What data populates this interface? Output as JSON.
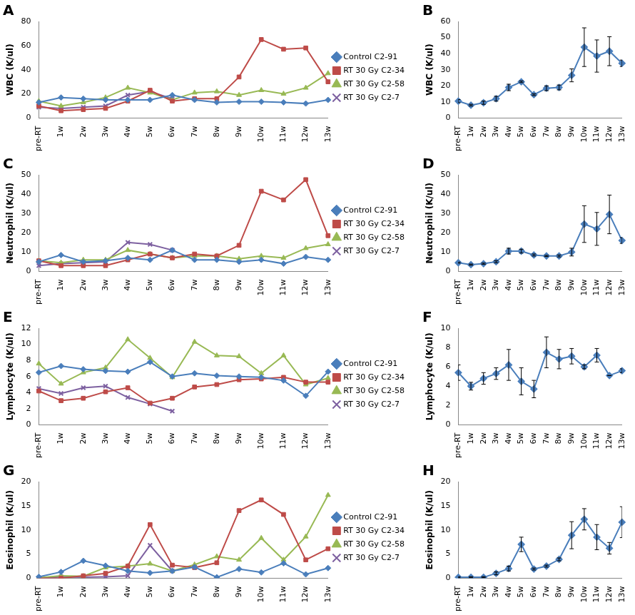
{
  "chart_data": [
    {
      "type": "line",
      "title": "A",
      "y_label": "WBC (K/ul)",
      "legend": "right",
      "grid": false,
      "categories": [
        "pre-RT",
        "1w",
        "2w",
        "3w",
        "4w",
        "5w",
        "6w",
        "7w",
        "8w",
        "9w",
        "10w",
        "11w",
        "12w",
        "13w"
      ],
      "ylim": [
        0,
        80
      ],
      "yticks": [
        0,
        20,
        40,
        60,
        80
      ],
      "series": [
        {
          "name": "Control C2-91",
          "color": "#4a7ebb",
          "marker": "diamond",
          "values": [
            13,
            17,
            16,
            15,
            15,
            15,
            19,
            15,
            13,
            13.5,
            13.5,
            13,
            12,
            15
          ]
        },
        {
          "name": "RT 30 Gy C2-34",
          "color": "#be4b48",
          "marker": "square",
          "values": [
            10,
            6,
            7,
            8,
            14,
            23,
            14,
            16,
            16,
            34,
            65,
            57,
            58,
            30
          ]
        },
        {
          "name": "RT 30 Gy C2-58",
          "color": "#98b954",
          "marker": "triangle",
          "values": [
            14,
            10,
            13,
            17,
            25,
            21,
            15,
            21,
            22,
            19,
            23,
            20,
            25,
            37
          ]
        },
        {
          "name": "RT 30 Gy C2-7",
          "color": "#7d60a0",
          "marker": "x",
          "values": [
            9,
            8,
            9,
            10,
            19,
            22,
            16,
            null,
            null,
            null,
            null,
            null,
            null,
            null
          ]
        }
      ]
    },
    {
      "type": "line",
      "title": "B",
      "y_label": "WBC (K/ul)",
      "grid": false,
      "categories": [
        "pre-RT",
        "1w",
        "2w",
        "3w",
        "4w",
        "5w",
        "6w",
        "7w",
        "8w",
        "9w",
        "10w",
        "11w",
        "12w",
        "13w"
      ],
      "ylim": [
        0,
        60
      ],
      "yticks": [
        0,
        10,
        20,
        30,
        40,
        50,
        60
      ],
      "color": "#4a7ebb",
      "marker": "diamond",
      "values": [
        10.5,
        8,
        9.5,
        12,
        19,
        22.5,
        14.5,
        18.5,
        19,
        26.5,
        44,
        38.5,
        41.5,
        34
      ],
      "errors": [
        1,
        0.5,
        1,
        1.5,
        2,
        0.5,
        0.5,
        1.5,
        1.5,
        4,
        12,
        10,
        9,
        2
      ]
    },
    {
      "type": "line",
      "title": "C",
      "y_label": "Neutrophil (K/ul)",
      "legend": "right",
      "grid": false,
      "categories": [
        "pre-RT",
        "1w",
        "2w",
        "3w",
        "4w",
        "5w",
        "6w",
        "7w",
        "8w",
        "9w",
        "10w",
        "11w",
        "12w",
        "13w"
      ],
      "ylim": [
        0,
        50
      ],
      "yticks": [
        0,
        10,
        20,
        30,
        40,
        50
      ],
      "series": [
        {
          "name": "Control C2-91",
          "color": "#4a7ebb",
          "marker": "diamond",
          "values": [
            5,
            8.5,
            5,
            5.5,
            7,
            6,
            11,
            6,
            6,
            5,
            6,
            4,
            7.5,
            6
          ]
        },
        {
          "name": "RT 30 Gy C2-34",
          "color": "#be4b48",
          "marker": "square",
          "values": [
            5.5,
            3,
            3,
            3,
            6,
            9,
            7,
            9,
            8,
            13.5,
            41.5,
            37,
            47.5,
            18.5
          ]
        },
        {
          "name": "RT 30 Gy C2-58",
          "color": "#98b954",
          "marker": "triangle",
          "values": [
            5.5,
            4.5,
            6,
            6,
            11,
            9,
            7,
            8,
            8,
            6.5,
            8,
            7,
            12,
            14
          ]
        },
        {
          "name": "RT 30 Gy C2-7",
          "color": "#7d60a0",
          "marker": "x",
          "values": [
            3,
            4,
            4.5,
            5,
            15,
            14,
            11,
            null,
            null,
            null,
            null,
            null,
            null,
            null
          ]
        }
      ]
    },
    {
      "type": "line",
      "title": "D",
      "y_label": "Neutrophil (K/ul)",
      "grid": false,
      "categories": [
        "pre-RT",
        "1w",
        "2w",
        "3w",
        "4w",
        "5w",
        "6w",
        "7w",
        "8w",
        "9w",
        "10w",
        "11w",
        "12w",
        "13w"
      ],
      "ylim": [
        0,
        50
      ],
      "yticks": [
        0,
        10,
        20,
        30,
        40,
        50
      ],
      "color": "#4a7ebb",
      "marker": "diamond",
      "values": [
        4.5,
        3.5,
        4,
        5,
        10.5,
        10.5,
        8.5,
        8,
        8,
        10,
        24.5,
        22,
        29.5,
        16
      ],
      "errors": [
        0.3,
        0.3,
        0.3,
        0.5,
        1.5,
        1,
        0.5,
        0.3,
        0.5,
        2,
        9.5,
        8.5,
        10,
        1.5
      ]
    },
    {
      "type": "line",
      "title": "E",
      "y_label": "Lymphocyte (K/ul)",
      "legend": "right",
      "grid": false,
      "categories": [
        "pre-RT",
        "1w",
        "2w",
        "3w",
        "4w",
        "5w",
        "6w",
        "7w",
        "8w",
        "9w",
        "10w",
        "11w",
        "12w",
        "13w"
      ],
      "ylim": [
        0,
        12
      ],
      "yticks": [
        0,
        2,
        4,
        6,
        8,
        10,
        12
      ],
      "series": [
        {
          "name": "Control C2-91",
          "color": "#4a7ebb",
          "marker": "diamond",
          "values": [
            6.5,
            7.3,
            6.9,
            6.7,
            6.6,
            7.8,
            6,
            6.4,
            6.1,
            6,
            5.9,
            5.5,
            3.6,
            6.6
          ]
        },
        {
          "name": "RT 30 Gy C2-34",
          "color": "#be4b48",
          "marker": "square",
          "values": [
            4.2,
            3,
            3.3,
            4.1,
            4.6,
            2.7,
            3.3,
            4.7,
            5,
            5.6,
            5.7,
            5.9,
            5.3,
            5.3
          ]
        },
        {
          "name": "RT 30 Gy C2-58",
          "color": "#98b954",
          "marker": "triangle",
          "values": [
            7.6,
            5.1,
            6.5,
            7.1,
            10.6,
            8.3,
            5.9,
            10.3,
            8.6,
            8.5,
            6.4,
            8.6,
            5,
            5.8
          ]
        },
        {
          "name": "RT 30 Gy C2-7",
          "color": "#7d60a0",
          "marker": "x",
          "values": [
            4.5,
            3.9,
            4.6,
            4.8,
            3.4,
            2.6,
            1.7,
            null,
            null,
            null,
            null,
            null,
            null,
            null
          ]
        }
      ]
    },
    {
      "type": "line",
      "title": "F",
      "y_label": "Lymphocyte (K/ul)",
      "grid": false,
      "categories": [
        "pre-RT",
        "1w",
        "2w",
        "3w",
        "4w",
        "5w",
        "6w",
        "7w",
        "8w",
        "9w",
        "10w",
        "11w",
        "12w",
        "13w"
      ],
      "ylim": [
        0,
        10
      ],
      "yticks": [
        0,
        2,
        4,
        6,
        8,
        10
      ],
      "color": "#4a7ebb",
      "marker": "diamond",
      "values": [
        5.4,
        4,
        4.8,
        5.3,
        6.2,
        4.5,
        3.7,
        7.5,
        6.8,
        7.1,
        6,
        7.2,
        5.1,
        5.6
      ],
      "errors": [
        0.8,
        0.4,
        0.6,
        0.6,
        1.6,
        1.4,
        0.9,
        1.6,
        1,
        0.8,
        0.2,
        0.7,
        0,
        0.2
      ]
    },
    {
      "type": "line",
      "title": "G",
      "y_label": "Eosinophil (K/ul)",
      "legend": "right",
      "grid": false,
      "categories": [
        "pre-RT",
        "1w",
        "2w",
        "3w",
        "4w",
        "5w",
        "6w",
        "7w",
        "8w",
        "9w",
        "10w",
        "11w",
        "12w",
        "13w"
      ],
      "ylim": [
        0,
        20
      ],
      "yticks": [
        0,
        5,
        10,
        15,
        20
      ],
      "series": [
        {
          "name": "Control C2-91",
          "color": "#4a7ebb",
          "marker": "diamond",
          "values": [
            0.3,
            1.3,
            3.6,
            2.6,
            1.5,
            1.1,
            1.5,
            2.3,
            0.2,
            1.9,
            1.2,
            3.1,
            0.8,
            2.1
          ]
        },
        {
          "name": "RT 30 Gy C2-34",
          "color": "#be4b48",
          "marker": "square",
          "values": [
            0,
            0,
            0.5,
            1,
            2.5,
            11.1,
            2.7,
            2.2,
            3.2,
            14,
            16.2,
            13.2,
            3.8,
            6.1
          ]
        },
        {
          "name": "RT 30 Gy C2-58",
          "color": "#98b954",
          "marker": "triangle",
          "values": [
            0.1,
            0.5,
            0.4,
            2.2,
            2.5,
            3,
            1.5,
            2.8,
            4.5,
            3.8,
            8.3,
            3.8,
            8.6,
            17.2
          ]
        },
        {
          "name": "RT 30 Gy C2-7",
          "color": "#7d60a0",
          "marker": "x",
          "values": [
            0,
            0.3,
            0.2,
            0.3,
            0.5,
            6.8,
            1.5,
            null,
            null,
            null,
            null,
            null,
            null,
            null
          ]
        }
      ]
    },
    {
      "type": "line",
      "title": "H",
      "y_label": "Eosinophil (K/ul)",
      "grid": false,
      "categories": [
        "pre-RT",
        "1w",
        "2w",
        "3w",
        "4w",
        "5w",
        "6w",
        "7w",
        "8w",
        "9w",
        "10w",
        "11w",
        "12w",
        "13w"
      ],
      "ylim": [
        0,
        20
      ],
      "yticks": [
        0,
        5,
        10,
        15,
        20
      ],
      "color": "#4a7ebb",
      "marker": "diamond",
      "values": [
        0.2,
        0.2,
        0.2,
        1,
        2,
        7,
        1.9,
        2.5,
        3.9,
        8.9,
        12.2,
        8.5,
        6.2,
        11.6
      ],
      "errors": [
        0.1,
        0.1,
        0.1,
        0.3,
        0.5,
        1.5,
        0.2,
        0.2,
        0.3,
        2.8,
        2.2,
        2.6,
        1.2,
        3.2
      ]
    }
  ]
}
